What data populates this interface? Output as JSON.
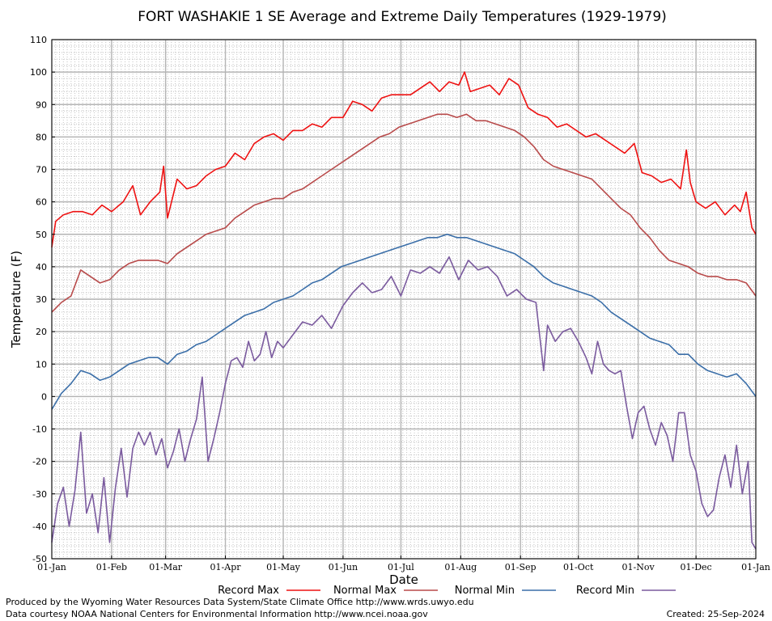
{
  "chart_data": {
    "type": "line",
    "title": "FORT WASHAKIE 1 SE Average and Extreme Daily Temperatures (1929-1979)",
    "xlabel": "Date",
    "ylabel": "Temperature (F)",
    "ylim": [
      -50,
      110
    ],
    "yticks": [
      -50,
      -40,
      -30,
      -20,
      -10,
      0,
      10,
      20,
      30,
      40,
      50,
      60,
      70,
      80,
      90,
      100,
      110
    ],
    "xlim": [
      1,
      366
    ],
    "grid": true,
    "legend": "bottom",
    "month_ticks": [
      {
        "label": "01-Jan",
        "day": 1
      },
      {
        "label": "01-Feb",
        "day": 32
      },
      {
        "label": "01-Mar",
        "day": 60
      },
      {
        "label": "01-Apr",
        "day": 91
      },
      {
        "label": "01-May",
        "day": 121
      },
      {
        "label": "01-Jun",
        "day": 152
      },
      {
        "label": "01-Jul",
        "day": 182
      },
      {
        "label": "01-Aug",
        "day": 213
      },
      {
        "label": "01-Sep",
        "day": 244
      },
      {
        "label": "01-Oct",
        "day": 274
      },
      {
        "label": "01-Nov",
        "day": 305
      },
      {
        "label": "01-Dec",
        "day": 335
      },
      {
        "label": "01-Jan",
        "day": 366
      }
    ],
    "series": [
      {
        "name": "Record Max",
        "color": "#ee1111",
        "days": [
          1,
          3,
          7,
          12,
          17,
          22,
          27,
          32,
          38,
          43,
          47,
          52,
          57,
          59,
          61,
          66,
          71,
          76,
          81,
          86,
          91,
          96,
          101,
          106,
          111,
          116,
          121,
          126,
          131,
          136,
          141,
          146,
          152,
          157,
          162,
          167,
          172,
          177,
          182,
          187,
          192,
          197,
          202,
          207,
          212,
          215,
          218,
          223,
          228,
          233,
          238,
          243,
          248,
          253,
          258,
          263,
          268,
          273,
          278,
          283,
          288,
          293,
          298,
          303,
          307,
          312,
          317,
          322,
          327,
          330,
          332,
          335,
          340,
          345,
          350,
          355,
          358,
          361,
          364,
          366
        ],
        "values": [
          46,
          54,
          56,
          57,
          57,
          56,
          59,
          57,
          60,
          65,
          56,
          60,
          63,
          71,
          55,
          67,
          64,
          65,
          68,
          70,
          71,
          75,
          73,
          78,
          80,
          81,
          79,
          82,
          82,
          84,
          83,
          86,
          86,
          91,
          90,
          88,
          92,
          93,
          93,
          93,
          95,
          97,
          94,
          97,
          96,
          100,
          94,
          95,
          96,
          93,
          98,
          96,
          89,
          87,
          86,
          83,
          84,
          82,
          80,
          81,
          79,
          77,
          75,
          78,
          69,
          68,
          66,
          67,
          64,
          76,
          66,
          60,
          58,
          60,
          56,
          59,
          57,
          63,
          52,
          50
        ]
      },
      {
        "name": "Normal Max",
        "color": "#b84a4a",
        "days": [
          1,
          6,
          11,
          16,
          21,
          26,
          31,
          36,
          41,
          46,
          51,
          56,
          61,
          66,
          71,
          76,
          81,
          86,
          91,
          96,
          101,
          106,
          111,
          116,
          121,
          126,
          131,
          136,
          141,
          146,
          151,
          156,
          161,
          166,
          171,
          176,
          181,
          186,
          191,
          196,
          201,
          206,
          211,
          216,
          221,
          226,
          231,
          236,
          241,
          246,
          251,
          256,
          261,
          266,
          271,
          276,
          281,
          286,
          291,
          296,
          301,
          306,
          311,
          316,
          321,
          326,
          331,
          336,
          341,
          346,
          351,
          356,
          361,
          366
        ],
        "values": [
          26,
          29,
          31,
          39,
          37,
          35,
          36,
          39,
          41,
          42,
          42,
          42,
          41,
          44,
          46,
          48,
          50,
          51,
          52,
          55,
          57,
          59,
          60,
          61,
          61,
          63,
          64,
          66,
          68,
          70,
          72,
          74,
          76,
          78,
          80,
          81,
          83,
          84,
          85,
          86,
          87,
          87,
          86,
          87,
          85,
          85,
          84,
          83,
          82,
          80,
          77,
          73,
          71,
          70,
          69,
          68,
          67,
          64,
          61,
          58,
          56,
          52,
          49,
          45,
          42,
          41,
          40,
          38,
          37,
          37,
          36,
          36,
          35,
          31
        ]
      },
      {
        "name": "Normal Min",
        "color": "#3a6ea8",
        "days": [
          1,
          6,
          11,
          16,
          21,
          26,
          31,
          36,
          41,
          46,
          51,
          56,
          61,
          66,
          71,
          76,
          81,
          86,
          91,
          96,
          101,
          106,
          111,
          116,
          121,
          126,
          131,
          136,
          141,
          146,
          151,
          156,
          161,
          166,
          171,
          176,
          181,
          186,
          191,
          196,
          201,
          206,
          211,
          216,
          221,
          226,
          231,
          236,
          241,
          246,
          251,
          256,
          261,
          266,
          271,
          276,
          281,
          286,
          291,
          296,
          301,
          306,
          311,
          316,
          321,
          326,
          331,
          336,
          341,
          346,
          351,
          356,
          361,
          366
        ],
        "values": [
          -4,
          1,
          4,
          8,
          7,
          5,
          6,
          8,
          10,
          11,
          12,
          12,
          10,
          13,
          14,
          16,
          17,
          19,
          21,
          23,
          25,
          26,
          27,
          29,
          30,
          31,
          33,
          35,
          36,
          38,
          40,
          41,
          42,
          43,
          44,
          45,
          46,
          47,
          48,
          49,
          49,
          50,
          49,
          49,
          48,
          47,
          46,
          45,
          44,
          42,
          40,
          37,
          35,
          34,
          33,
          32,
          31,
          29,
          26,
          24,
          22,
          20,
          18,
          17,
          16,
          13,
          13,
          10,
          8,
          7,
          6,
          7,
          4,
          0
        ]
      },
      {
        "name": "Record Min",
        "color": "#7a5a9e",
        "days": [
          1,
          4,
          7,
          10,
          13,
          16,
          19,
          22,
          25,
          28,
          31,
          34,
          37,
          40,
          43,
          46,
          49,
          52,
          55,
          58,
          61,
          64,
          67,
          70,
          73,
          76,
          79,
          82,
          85,
          88,
          91,
          94,
          97,
          100,
          103,
          106,
          109,
          112,
          115,
          118,
          121,
          126,
          131,
          136,
          141,
          146,
          152,
          157,
          162,
          167,
          172,
          177,
          182,
          187,
          192,
          197,
          202,
          207,
          212,
          217,
          222,
          227,
          232,
          237,
          242,
          247,
          252,
          256,
          258,
          262,
          266,
          270,
          274,
          278,
          281,
          284,
          287,
          290,
          293,
          296,
          299,
          302,
          305,
          308,
          311,
          314,
          317,
          320,
          323,
          326,
          329,
          332,
          335,
          338,
          341,
          344,
          347,
          350,
          353,
          356,
          359,
          362,
          364,
          366
        ],
        "values": [
          -45,
          -33,
          -28,
          -40,
          -29,
          -11,
          -36,
          -30,
          -42,
          -25,
          -45,
          -28,
          -16,
          -31,
          -16,
          -11,
          -15,
          -11,
          -18,
          -13,
          -22,
          -17,
          -10,
          -20,
          -13,
          -7,
          6,
          -20,
          -13,
          -5,
          4,
          11,
          12,
          9,
          17,
          11,
          13,
          20,
          12,
          17,
          15,
          19,
          23,
          22,
          25,
          21,
          28,
          32,
          35,
          32,
          33,
          37,
          31,
          39,
          38,
          40,
          38,
          43,
          36,
          42,
          39,
          40,
          37,
          31,
          33,
          30,
          29,
          8,
          22,
          17,
          20,
          21,
          17,
          12,
          7,
          17,
          10,
          8,
          7,
          8,
          -3,
          -13,
          -5,
          -3,
          -10,
          -15,
          -8,
          -12,
          -20,
          -5,
          -5,
          -18,
          -23,
          -33,
          -37,
          -35,
          -25,
          -18,
          -28,
          -15,
          -30,
          -20,
          -45,
          -47
        ]
      }
    ]
  },
  "footer": {
    "produced_by": "Produced by the Wyoming Water Resources Data System/State Climate Office http://www.wrds.uwyo.edu",
    "data_courtesy": "Data courtesy NOAA National Centers for Environmental Information http://www.ncei.noaa.gov",
    "created": "Created:  25-Sep-2024"
  }
}
